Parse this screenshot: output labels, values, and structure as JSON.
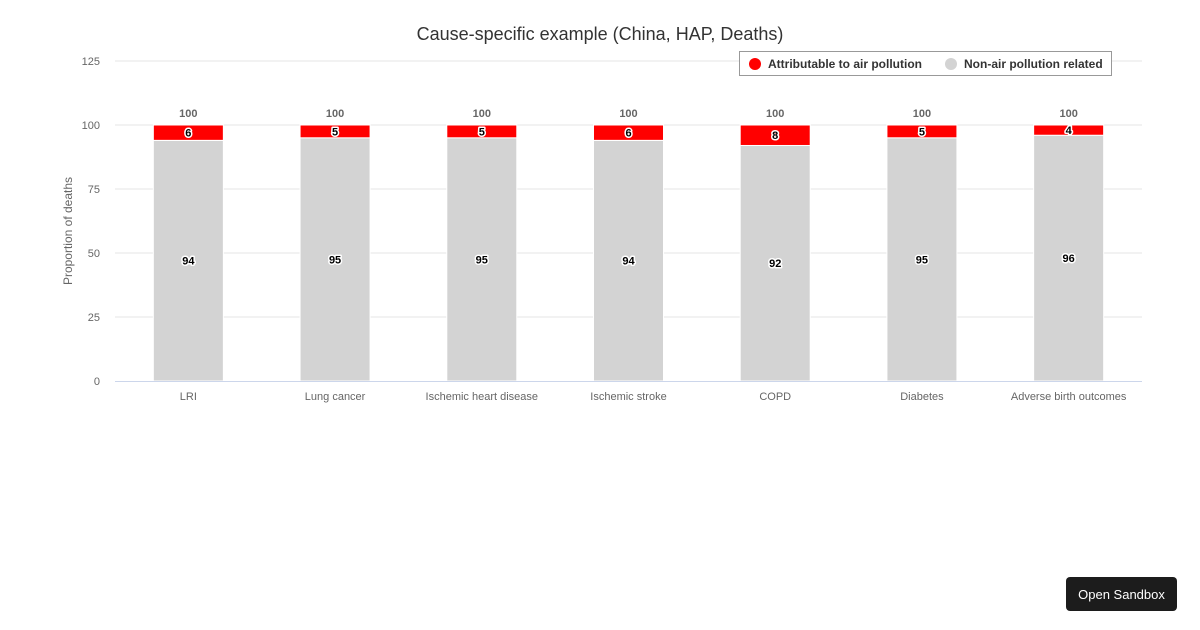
{
  "chart_data": {
    "type": "bar",
    "stacked": true,
    "title": "Cause-specific example (China, HAP, Deaths)",
    "xlabel": "",
    "ylabel": "Proportion of deaths",
    "ylim": [
      0,
      125
    ],
    "yticks": [
      0,
      25,
      50,
      75,
      100,
      125
    ],
    "grid": true,
    "legend_position": "top-right",
    "categories": [
      "LRI",
      "Lung cancer",
      "Ischemic heart disease",
      "Ischemic stroke",
      "COPD",
      "Diabetes",
      "Adverse birth outcomes"
    ],
    "series": [
      {
        "name": "Attributable to air pollution",
        "color": "#ff0000",
        "values": [
          6,
          5,
          5,
          6,
          8,
          5,
          4
        ]
      },
      {
        "name": "Non-air pollution related",
        "color": "#d3d3d3",
        "values": [
          94,
          95,
          95,
          94,
          92,
          95,
          96
        ]
      }
    ],
    "totals": [
      100,
      100,
      100,
      100,
      100,
      100,
      100
    ]
  },
  "sandbox_button": {
    "label": "Open Sandbox"
  }
}
